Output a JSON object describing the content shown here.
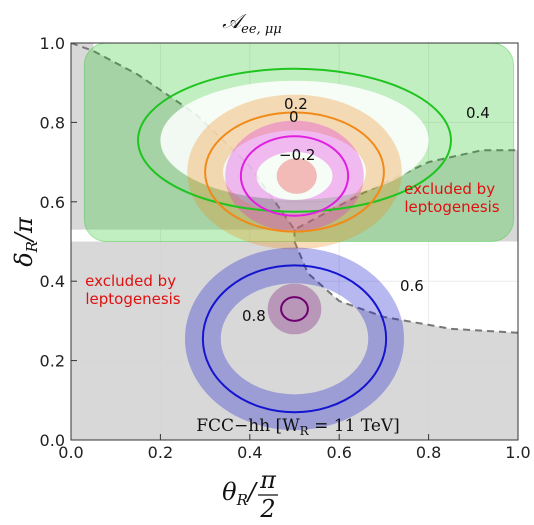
{
  "chart_data": {
    "type": "contour",
    "title": "𝒜",
    "title_sub": "ee, μμ",
    "xlabel": "θ",
    "xlabel_sub": "R",
    "xlabel_div": "/",
    "xlabel_frac_num": "π",
    "xlabel_frac_den": "2",
    "ylabel": "δ",
    "ylabel_sub": "R",
    "ylabel_tail": "/π",
    "xlim": [
      0.0,
      1.0
    ],
    "ylim": [
      0.0,
      1.0
    ],
    "xticks": [
      "0.0",
      "0.2",
      "0.4",
      "0.6",
      "0.8",
      "1.0"
    ],
    "yticks": [
      "0.0",
      "0.2",
      "0.4",
      "0.6",
      "0.8",
      "1.0"
    ],
    "grid": true,
    "benchmark_label": "FCC−hh [W",
    "benchmark_sub": "R",
    "benchmark_tail": " = 11 TeV]",
    "exclusion_label_lines": [
      "excluded by",
      "leptogenesis"
    ],
    "colors": {
      "level_0.4": "#1fc41f",
      "level_0.2": "#f08a1a",
      "level_0": "#e020e0",
      "level_-0.2": "#f09090",
      "level_0.6": "#1515d0",
      "level_0.8": "#700070",
      "excluded": "#d4d4d4",
      "excl_boundary": "#777777",
      "excl_text": "#e01010"
    },
    "contours": [
      {
        "level": "0.4",
        "label": "0.4",
        "color_key": "level_0.4",
        "center": [
          0.5,
          0.755
        ],
        "rx": 0.35,
        "ry": 0.18,
        "band_inner": [
          0.3,
          0.15
        ],
        "filled_band": true
      },
      {
        "level": "0.2",
        "label": "0.2",
        "color_key": "level_0.2",
        "center": [
          0.5,
          0.675
        ],
        "rx": 0.2,
        "ry": 0.15,
        "band": [
          0.04,
          0.04
        ]
      },
      {
        "level": "0",
        "label": "0",
        "color_key": "level_0",
        "center": [
          0.5,
          0.665
        ],
        "rx": 0.12,
        "ry": 0.1,
        "band": [
          0.035,
          0.03
        ]
      },
      {
        "level": "-0.2",
        "label": "−0.2",
        "color_key": "level_-0.2",
        "center": [
          0.505,
          0.665
        ],
        "rx": 0.045,
        "ry": 0.045,
        "filled": true
      },
      {
        "level": "0.6",
        "label": "0.6",
        "color_key": "level_0.6",
        "center": [
          0.5,
          0.255
        ],
        "rx": 0.205,
        "ry": 0.185,
        "band": [
          0.04,
          0.04
        ]
      },
      {
        "level": "0.8",
        "label": "0.8",
        "color_key": "level_0.8",
        "center": [
          0.5,
          0.33
        ],
        "rx": 0.03,
        "ry": 0.03,
        "band": [
          0.03,
          0.03
        ]
      }
    ],
    "exclusion_regions": [
      {
        "name": "upper-right",
        "boundary": [
          [
            0.0,
            1.0
          ],
          [
            0.05,
            0.98
          ],
          [
            0.15,
            0.92
          ],
          [
            0.28,
            0.82
          ],
          [
            0.4,
            0.69
          ],
          [
            0.5,
            0.53
          ],
          [
            0.65,
            0.62
          ],
          [
            0.8,
            0.7
          ],
          [
            0.92,
            0.73
          ],
          [
            1.0,
            0.73
          ]
        ]
      },
      {
        "name": "lower-left",
        "boundary": [
          [
            0.5,
            0.5
          ],
          [
            0.53,
            0.42
          ],
          [
            0.6,
            0.35
          ],
          [
            0.7,
            0.31
          ],
          [
            0.85,
            0.28
          ],
          [
            1.0,
            0.27
          ]
        ]
      }
    ]
  }
}
